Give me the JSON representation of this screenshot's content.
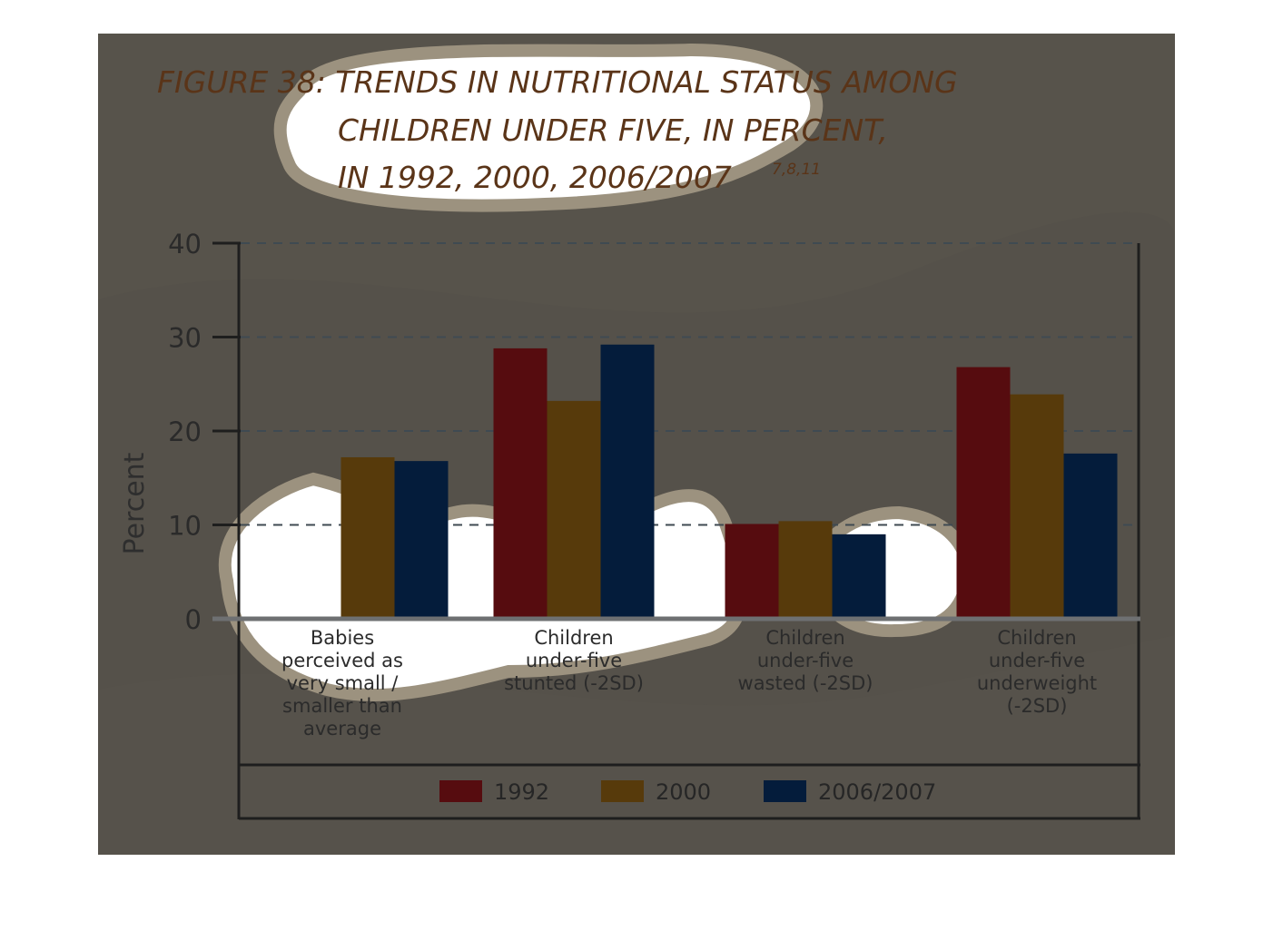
{
  "chart_data": {
    "type": "bar",
    "title": [
      "FIGURE 38: TRENDS IN NUTRITIONAL STATUS AMONG",
      "CHILDREN UNDER FIVE, IN PERCENT,",
      "IN 1992, 2000, 2006/2007"
    ],
    "title_superscript": "7,8,11",
    "ylabel": "Percent",
    "xlabel": "",
    "ylim": [
      0,
      40
    ],
    "yticks": [
      "0",
      "10",
      "20",
      "30",
      "40"
    ],
    "grid": "horizontal dashed",
    "legend_position": "bottom",
    "categories": [
      [
        "Babies",
        "perceived as",
        "very small /",
        "smaller than",
        "average"
      ],
      [
        "Children",
        "under-five",
        "stunted (-2SD)"
      ],
      [
        "Children",
        "under-five",
        "wasted (-2SD)"
      ],
      [
        "Children",
        "under-five",
        "underweight",
        "(-2SD)"
      ]
    ],
    "series": [
      {
        "name": "1992",
        "color": "#560c0f",
        "values": [
          null,
          28.8,
          10.1,
          26.8
        ]
      },
      {
        "name": "2000",
        "color": "#573a0b",
        "values": [
          17.2,
          23.2,
          10.4,
          23.9
        ]
      },
      {
        "name": "2006/2007",
        "color": "#041c3b",
        "values": [
          16.8,
          29.2,
          9.0,
          17.6
        ]
      }
    ]
  }
}
